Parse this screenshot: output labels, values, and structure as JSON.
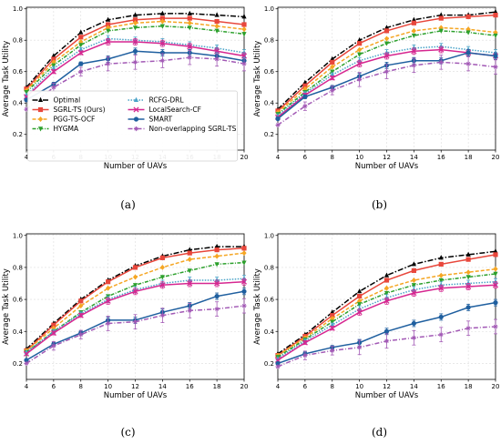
{
  "chart_data": [
    {
      "type": "line",
      "caption": "(a)",
      "xlabel": "Number of UAVs",
      "ylabel": "Average Task Utility",
      "xlim": [
        4,
        20
      ],
      "ylim": [
        0.1,
        1.01
      ],
      "xticks": [
        "4",
        "6",
        "8",
        "10",
        "12",
        "14",
        "16",
        "18",
        "20"
      ],
      "yticks": [
        "0.2",
        "0.4",
        "0.6",
        "0.8",
        "1.0"
      ],
      "grid": true,
      "legend": "bottom",
      "x": [
        4,
        6,
        8,
        10,
        12,
        14,
        16,
        18,
        20
      ],
      "series": [
        {
          "name": "Optimal",
          "values": [
            0.5,
            0.7,
            0.85,
            0.93,
            0.96,
            0.97,
            0.97,
            0.96,
            0.95
          ]
        },
        {
          "name": "SGRL-TS (Ours)",
          "values": [
            0.49,
            0.68,
            0.82,
            0.9,
            0.93,
            0.94,
            0.94,
            0.92,
            0.9
          ]
        },
        {
          "name": "PGG-TS-OCF",
          "values": [
            0.48,
            0.66,
            0.79,
            0.88,
            0.91,
            0.92,
            0.91,
            0.89,
            0.87
          ]
        },
        {
          "name": "HYGMA",
          "values": [
            0.47,
            0.64,
            0.77,
            0.86,
            0.88,
            0.89,
            0.88,
            0.86,
            0.84
          ]
        },
        {
          "name": "RCFG-DRL",
          "values": [
            0.45,
            0.62,
            0.74,
            0.81,
            0.8,
            0.79,
            0.77,
            0.75,
            0.72
          ]
        },
        {
          "name": "LocalSearch-CF",
          "values": [
            0.44,
            0.6,
            0.72,
            0.79,
            0.79,
            0.78,
            0.76,
            0.73,
            0.7
          ]
        },
        {
          "name": "SMART",
          "values": [
            0.42,
            0.52,
            0.65,
            0.68,
            0.73,
            0.72,
            0.72,
            0.7,
            0.67
          ]
        },
        {
          "name": "Non-overlapping SGRL-TS",
          "values": [
            0.36,
            0.5,
            0.6,
            0.65,
            0.66,
            0.67,
            0.69,
            0.68,
            0.65
          ]
        }
      ]
    },
    {
      "type": "line",
      "caption": "(b)",
      "xlabel": "Number of UAVs",
      "ylabel": "Average Task Utility",
      "xlim": [
        4,
        20
      ],
      "ylim": [
        0.1,
        1.01
      ],
      "xticks": [
        "4",
        "6",
        "8",
        "10",
        "12",
        "14",
        "16",
        "18",
        "20"
      ],
      "yticks": [
        "0.2",
        "0.4",
        "0.6",
        "0.8",
        "1.0"
      ],
      "grid": true,
      "x": [
        4,
        6,
        8,
        10,
        12,
        14,
        16,
        18,
        20
      ],
      "series": [
        {
          "name": "Optimal",
          "values": [
            0.36,
            0.53,
            0.68,
            0.8,
            0.88,
            0.93,
            0.96,
            0.96,
            0.98
          ]
        },
        {
          "name": "SGRL-TS (Ours)",
          "values": [
            0.35,
            0.51,
            0.66,
            0.78,
            0.86,
            0.91,
            0.94,
            0.95,
            0.96
          ]
        },
        {
          "name": "PGG-TS-OCF",
          "values": [
            0.34,
            0.49,
            0.63,
            0.74,
            0.81,
            0.86,
            0.88,
            0.87,
            0.85
          ]
        },
        {
          "name": "HYGMA",
          "values": [
            0.33,
            0.47,
            0.6,
            0.71,
            0.78,
            0.83,
            0.86,
            0.85,
            0.83
          ]
        },
        {
          "name": "RCFG-DRL",
          "values": [
            0.32,
            0.46,
            0.58,
            0.67,
            0.72,
            0.75,
            0.76,
            0.74,
            0.72
          ]
        },
        {
          "name": "LocalSearch-CF",
          "values": [
            0.31,
            0.45,
            0.56,
            0.65,
            0.7,
            0.73,
            0.74,
            0.72,
            0.7
          ]
        },
        {
          "name": "SMART",
          "values": [
            0.3,
            0.44,
            0.5,
            0.57,
            0.64,
            0.67,
            0.67,
            0.72,
            0.7
          ]
        },
        {
          "name": "Non-overlapping SGRL-TS",
          "values": [
            0.26,
            0.38,
            0.48,
            0.55,
            0.6,
            0.64,
            0.66,
            0.65,
            0.63
          ]
        }
      ]
    },
    {
      "type": "line",
      "caption": "(c)",
      "xlabel": "Number of UAVs",
      "ylabel": "Average Task Utility",
      "xlim": [
        4,
        20
      ],
      "ylim": [
        0.1,
        1.01
      ],
      "xticks": [
        "4",
        "6",
        "8",
        "10",
        "12",
        "14",
        "16",
        "18",
        "20"
      ],
      "yticks": [
        "0.2",
        "0.4",
        "0.6",
        "0.8",
        "1.0"
      ],
      "grid": true,
      "x": [
        4,
        6,
        8,
        10,
        12,
        14,
        16,
        18,
        20
      ],
      "series": [
        {
          "name": "Optimal",
          "values": [
            0.29,
            0.45,
            0.6,
            0.72,
            0.81,
            0.87,
            0.91,
            0.93,
            0.93
          ]
        },
        {
          "name": "SGRL-TS (Ours)",
          "values": [
            0.28,
            0.44,
            0.59,
            0.71,
            0.8,
            0.86,
            0.89,
            0.91,
            0.92
          ]
        },
        {
          "name": "PGG-TS-OCF",
          "values": [
            0.28,
            0.42,
            0.56,
            0.67,
            0.74,
            0.8,
            0.85,
            0.87,
            0.89
          ]
        },
        {
          "name": "HYGMA",
          "values": [
            0.27,
            0.4,
            0.52,
            0.62,
            0.69,
            0.74,
            0.78,
            0.82,
            0.83
          ]
        },
        {
          "name": "RCFG-DRL",
          "values": [
            0.27,
            0.4,
            0.51,
            0.6,
            0.66,
            0.7,
            0.72,
            0.72,
            0.73
          ]
        },
        {
          "name": "LocalSearch-CF",
          "values": [
            0.26,
            0.39,
            0.5,
            0.59,
            0.65,
            0.69,
            0.7,
            0.7,
            0.71
          ]
        },
        {
          "name": "SMART",
          "values": [
            0.22,
            0.32,
            0.39,
            0.47,
            0.47,
            0.52,
            0.56,
            0.62,
            0.65
          ]
        },
        {
          "name": "Non-overlapping SGRL-TS",
          "values": [
            0.2,
            0.31,
            0.38,
            0.45,
            0.46,
            0.5,
            0.53,
            0.54,
            0.56
          ]
        }
      ]
    },
    {
      "type": "line",
      "caption": "(d)",
      "xlabel": "Number of UAVs",
      "ylabel": "Average Task Utility",
      "xlim": [
        4,
        20
      ],
      "ylim": [
        0.1,
        1.01
      ],
      "xticks": [
        "4",
        "6",
        "8",
        "10",
        "12",
        "14",
        "16",
        "18",
        "20"
      ],
      "yticks": [
        "0.2",
        "0.4",
        "0.6",
        "0.8",
        "1.0"
      ],
      "grid": true,
      "x": [
        4,
        6,
        8,
        10,
        12,
        14,
        16,
        18,
        20
      ],
      "series": [
        {
          "name": "Optimal",
          "values": [
            0.26,
            0.38,
            0.52,
            0.65,
            0.75,
            0.82,
            0.86,
            0.88,
            0.9
          ]
        },
        {
          "name": "SGRL-TS (Ours)",
          "values": [
            0.25,
            0.37,
            0.5,
            0.62,
            0.72,
            0.78,
            0.82,
            0.85,
            0.88
          ]
        },
        {
          "name": "PGG-TS-OCF",
          "values": [
            0.25,
            0.36,
            0.48,
            0.59,
            0.67,
            0.72,
            0.75,
            0.77,
            0.79
          ]
        },
        {
          "name": "HYGMA",
          "values": [
            0.24,
            0.35,
            0.46,
            0.57,
            0.64,
            0.69,
            0.72,
            0.74,
            0.76
          ]
        },
        {
          "name": "RCFG-DRL",
          "values": [
            0.23,
            0.34,
            0.44,
            0.54,
            0.61,
            0.66,
            0.69,
            0.7,
            0.71
          ]
        },
        {
          "name": "LocalSearch-CF",
          "values": [
            0.22,
            0.33,
            0.42,
            0.52,
            0.59,
            0.64,
            0.67,
            0.68,
            0.69
          ]
        },
        {
          "name": "SMART",
          "values": [
            0.2,
            0.26,
            0.3,
            0.33,
            0.4,
            0.45,
            0.49,
            0.55,
            0.58
          ]
        },
        {
          "name": "Non-overlapping SGRL-TS",
          "values": [
            0.18,
            0.25,
            0.28,
            0.3,
            0.34,
            0.36,
            0.38,
            0.42,
            0.43
          ]
        }
      ]
    }
  ],
  "series_styles": [
    {
      "color": "#000000",
      "dash": "6 2 1.5 2",
      "marker": "triangle"
    },
    {
      "color": "#e8473c",
      "dash": "",
      "marker": "square"
    },
    {
      "color": "#f5a623",
      "dash": "4 2",
      "marker": "diamond"
    },
    {
      "color": "#2ca02c",
      "dash": "4 1.5 1 1.5",
      "marker": "triangle-down"
    },
    {
      "color": "#4aa3c8",
      "dash": "1.5 1.5",
      "marker": "triangle"
    },
    {
      "color": "#d62790",
      "dash": "",
      "marker": "x"
    },
    {
      "color": "#1f5f9f",
      "dash": "",
      "marker": "circle"
    },
    {
      "color": "#a259b5",
      "dash": "5 2 1 2",
      "marker": "star"
    }
  ]
}
